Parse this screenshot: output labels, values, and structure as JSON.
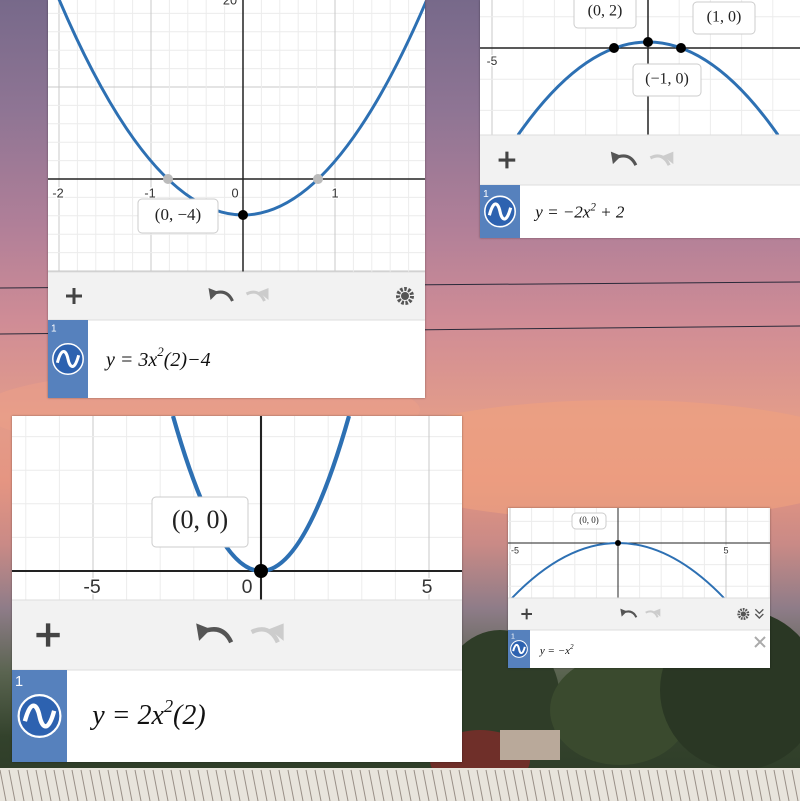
{
  "panels": [
    {
      "x_tick_labels": [
        "-2",
        "-1",
        "0",
        "1"
      ],
      "y_tick_labels": [
        "20"
      ],
      "point_labels": [
        "(0, −4)"
      ],
      "expression_index": "1",
      "equation": [
        "y = 3x",
        "2",
        "(2)−4"
      ]
    },
    {
      "x_tick_labels": [
        "-5"
      ],
      "y_tick_labels": [],
      "point_labels": [
        "(0, 2)",
        "(1, 0)",
        "(−1, 0)"
      ],
      "expression_index": "1",
      "equation": [
        "y = −2x",
        "2",
        " + 2"
      ]
    },
    {
      "x_tick_labels": [
        "-5",
        "0",
        "5"
      ],
      "y_tick_labels": [],
      "point_labels": [
        "(0, 0)"
      ],
      "expression_index": "1",
      "equation": [
        "y = 2x",
        "2",
        "(2)"
      ]
    },
    {
      "x_tick_labels": [
        "-5",
        "5"
      ],
      "y_tick_labels": [],
      "point_labels": [
        "(0, 0)"
      ],
      "expression_index": "1",
      "equation": [
        "y = −x",
        "2",
        ""
      ]
    }
  ]
}
